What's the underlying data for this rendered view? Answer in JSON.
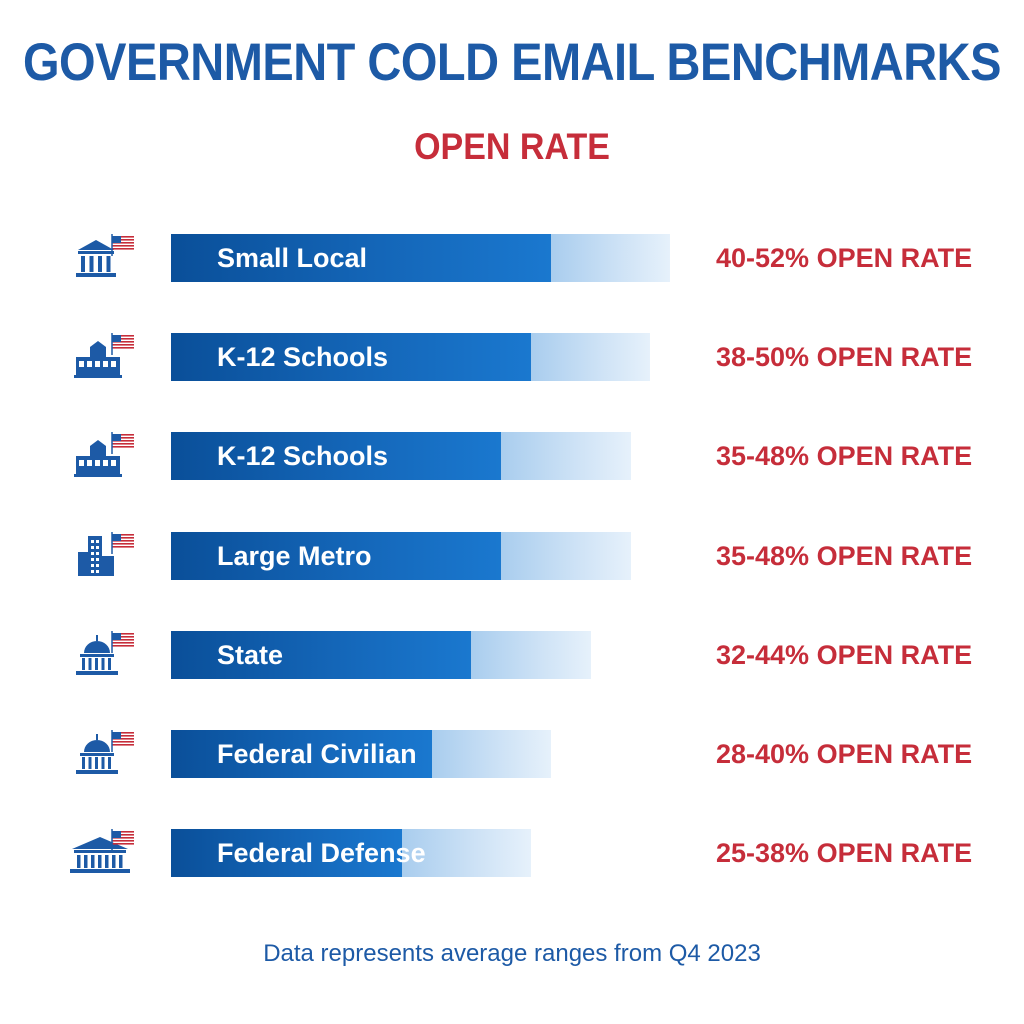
{
  "title": "GOVERNMENT COLD EMAIL BENCHMARKS",
  "subtitle": "OPEN RATE",
  "footnote": "Data represents average ranges from Q4 2023",
  "colors": {
    "title": "#1d5aa6",
    "accent_red": "#c62d3a",
    "bar_primary": "#0a4f99",
    "bar_light": "#cfe3f6"
  },
  "chart_data": {
    "type": "bar",
    "orientation": "horizontal",
    "title": "GOVERNMENT COLD EMAIL BENCHMARKS",
    "subtitle": "OPEN RATE",
    "value_suffix": "OPEN RATE",
    "categories": [
      "Small Local",
      "K-12 Schools",
      "K-12 Schools",
      "Large Metro",
      "State",
      "Federal Civilian",
      "Federal Defense"
    ],
    "ranges": [
      [
        40,
        52
      ],
      [
        38,
        50
      ],
      [
        35,
        48
      ],
      [
        35,
        48
      ],
      [
        32,
        44
      ],
      [
        28,
        40
      ],
      [
        25,
        38
      ]
    ],
    "value_labels": [
      "40-52% OPEN RATE",
      "38-50% OPEN RATE",
      "35-48% OPEN RATE",
      "35-48% OPEN RATE",
      "32-44% OPEN RATE",
      "28-40% OPEN RATE",
      "25-38% OPEN RATE"
    ],
    "icons": [
      "city-hall-flag-icon",
      "school-flag-icon",
      "school-flag-icon",
      "skyscraper-flag-icon",
      "capitol-dome-flag-icon",
      "capitol-dome-flag-icon",
      "federal-building-flag-icon"
    ],
    "grid": false,
    "legend": "none"
  }
}
